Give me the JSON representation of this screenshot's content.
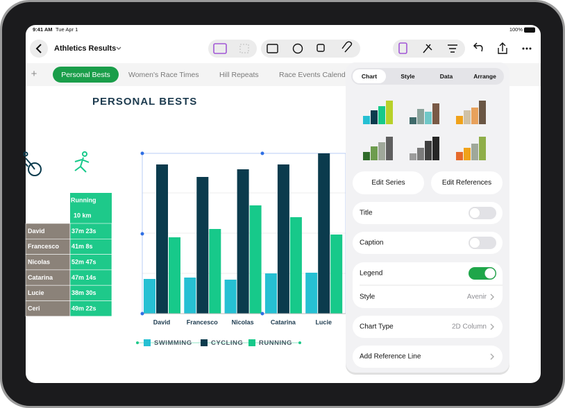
{
  "status_bar": {
    "time": "9:41 AM",
    "date": "Tue Apr 1",
    "battery": "100%"
  },
  "toolbar": {
    "document_title": "Athletics Results"
  },
  "sheet_tabs": {
    "tabs": [
      "Personal Bests",
      "Women's Race Times",
      "Hill Repeats",
      "Race Events Calenda"
    ],
    "selected": 0
  },
  "sheet": {
    "title": "PERSONAL BESTS",
    "table": {
      "header": [
        "Running",
        "10 km"
      ],
      "rows": [
        [
          "David",
          "37m 23s"
        ],
        [
          "Francesco",
          "41m 8s"
        ],
        [
          "Nicolas",
          "52m 47s"
        ],
        [
          "Catarina",
          "47m 14s"
        ],
        [
          "Lucie",
          "38m 30s"
        ],
        [
          "Ceri",
          "49m 22s"
        ]
      ]
    }
  },
  "chart_data": {
    "type": "bar",
    "categories": [
      "David",
      "Francesco",
      "Nicolas",
      "Catarina",
      "Lucie"
    ],
    "series": [
      {
        "name": "SWIMMING",
        "color": "#26c0d3",
        "values": [
          50,
          52,
          49,
          58,
          59
        ]
      },
      {
        "name": "CYCLING",
        "color": "#0b3b4d",
        "values": [
          215,
          197,
          208,
          215,
          231
        ]
      },
      {
        "name": "RUNNING",
        "color": "#17c98a",
        "values": [
          110,
          122,
          156,
          139,
          114
        ]
      }
    ],
    "ylim": [
      0,
      231
    ],
    "legend": "bottom"
  },
  "format_panel": {
    "tabs": [
      "Chart",
      "Style",
      "Data",
      "Arrange"
    ],
    "selected_tab": 0,
    "buttons": [
      "Edit Series",
      "Edit References"
    ],
    "toggles": [
      {
        "label": "Title",
        "on": false
      },
      {
        "label": "Caption",
        "on": false
      },
      {
        "label": "Legend",
        "on": true
      }
    ],
    "style": {
      "label": "Style",
      "value": "Avenir"
    },
    "chart_type": {
      "label": "Chart Type",
      "value": "2D Column"
    },
    "reference_line": "Add Reference Line"
  }
}
